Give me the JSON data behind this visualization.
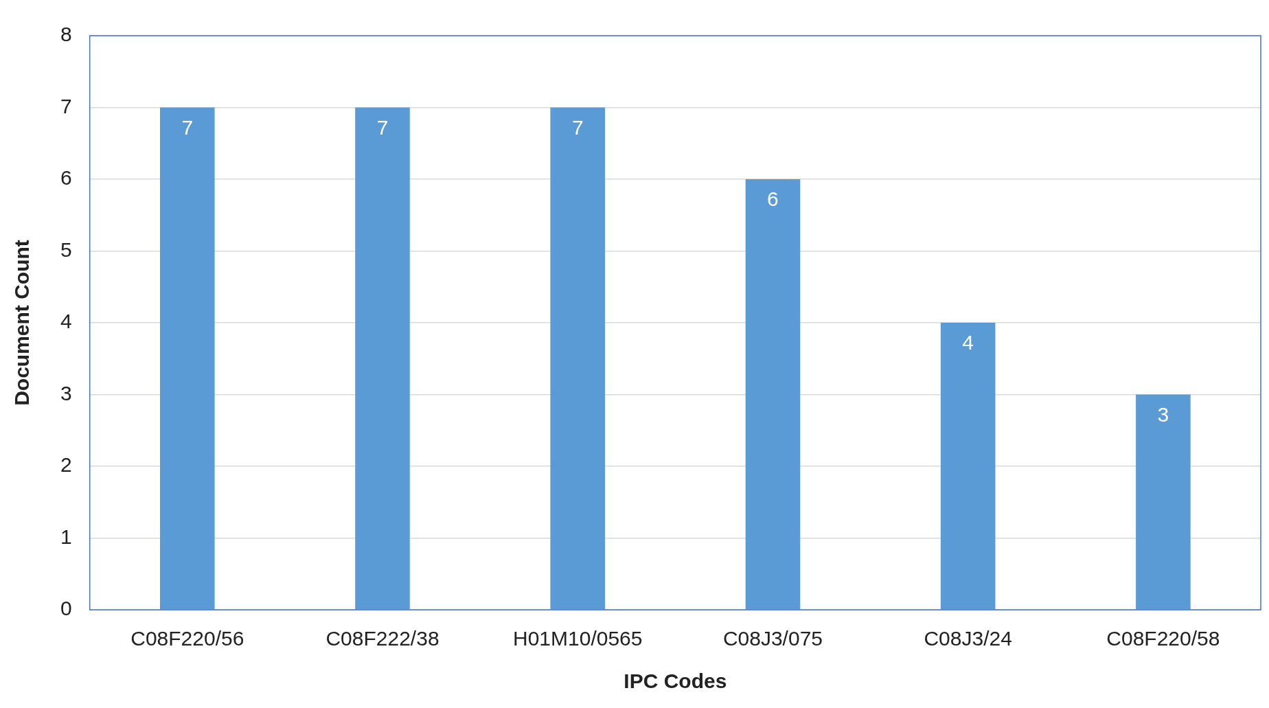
{
  "chart_data": {
    "type": "bar",
    "xlabel": "IPC Codes",
    "ylabel": "Document Count",
    "categories": [
      "C08F220/56",
      "C08F222/38",
      "H01M10/0565",
      "C08J3/075",
      "C08J3/24",
      "C08F220/58"
    ],
    "values": [
      7,
      7,
      7,
      6,
      4,
      3
    ],
    "color": "#5b9bd5",
    "ylim": [
      0,
      8
    ],
    "yticks": [
      0,
      1,
      2,
      3,
      4,
      5,
      6,
      7,
      8
    ],
    "grid": "y",
    "data_labels": true,
    "legend": false
  }
}
